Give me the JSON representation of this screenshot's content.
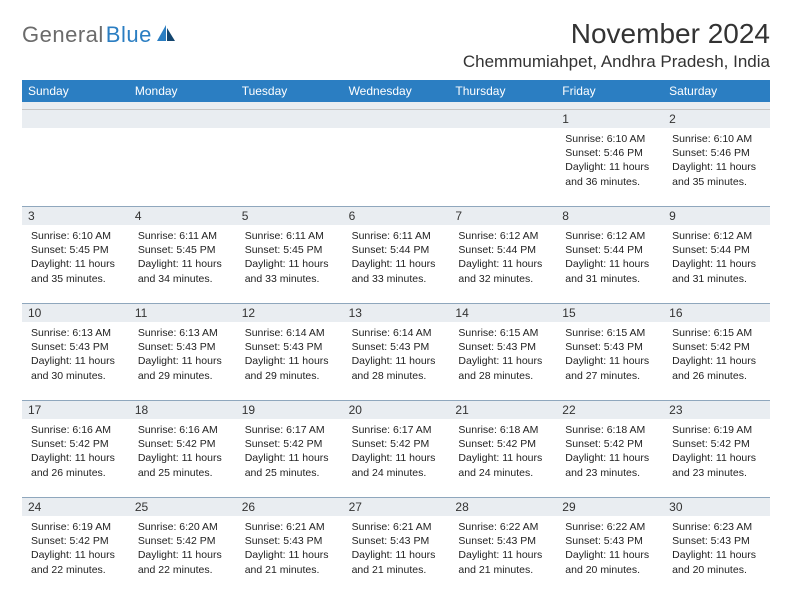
{
  "logo": {
    "text1": "General",
    "text2": "Blue"
  },
  "title": "November 2024",
  "location": "Chemmumiahpet, Andhra Pradesh, India",
  "colors": {
    "header_bg": "#2b7ec2",
    "datenum_bg": "#e9edf1",
    "date_border": "#8fa7bd",
    "spacer_border": "#c6c6c6",
    "text": "#222222",
    "logo_gray": "#6b6b6b",
    "logo_blue": "#2b7ec2"
  },
  "day_headers": [
    "Sunday",
    "Monday",
    "Tuesday",
    "Wednesday",
    "Thursday",
    "Friday",
    "Saturday"
  ],
  "weeks": [
    [
      {
        "n": "",
        "lines": []
      },
      {
        "n": "",
        "lines": []
      },
      {
        "n": "",
        "lines": []
      },
      {
        "n": "",
        "lines": []
      },
      {
        "n": "",
        "lines": []
      },
      {
        "n": "1",
        "lines": [
          "Sunrise: 6:10 AM",
          "Sunset: 5:46 PM",
          "Daylight: 11 hours",
          "and 36 minutes."
        ]
      },
      {
        "n": "2",
        "lines": [
          "Sunrise: 6:10 AM",
          "Sunset: 5:46 PM",
          "Daylight: 11 hours",
          "and 35 minutes."
        ]
      }
    ],
    [
      {
        "n": "3",
        "lines": [
          "Sunrise: 6:10 AM",
          "Sunset: 5:45 PM",
          "Daylight: 11 hours",
          "and 35 minutes."
        ]
      },
      {
        "n": "4",
        "lines": [
          "Sunrise: 6:11 AM",
          "Sunset: 5:45 PM",
          "Daylight: 11 hours",
          "and 34 minutes."
        ]
      },
      {
        "n": "5",
        "lines": [
          "Sunrise: 6:11 AM",
          "Sunset: 5:45 PM",
          "Daylight: 11 hours",
          "and 33 minutes."
        ]
      },
      {
        "n": "6",
        "lines": [
          "Sunrise: 6:11 AM",
          "Sunset: 5:44 PM",
          "Daylight: 11 hours",
          "and 33 minutes."
        ]
      },
      {
        "n": "7",
        "lines": [
          "Sunrise: 6:12 AM",
          "Sunset: 5:44 PM",
          "Daylight: 11 hours",
          "and 32 minutes."
        ]
      },
      {
        "n": "8",
        "lines": [
          "Sunrise: 6:12 AM",
          "Sunset: 5:44 PM",
          "Daylight: 11 hours",
          "and 31 minutes."
        ]
      },
      {
        "n": "9",
        "lines": [
          "Sunrise: 6:12 AM",
          "Sunset: 5:44 PM",
          "Daylight: 11 hours",
          "and 31 minutes."
        ]
      }
    ],
    [
      {
        "n": "10",
        "lines": [
          "Sunrise: 6:13 AM",
          "Sunset: 5:43 PM",
          "Daylight: 11 hours",
          "and 30 minutes."
        ]
      },
      {
        "n": "11",
        "lines": [
          "Sunrise: 6:13 AM",
          "Sunset: 5:43 PM",
          "Daylight: 11 hours",
          "and 29 minutes."
        ]
      },
      {
        "n": "12",
        "lines": [
          "Sunrise: 6:14 AM",
          "Sunset: 5:43 PM",
          "Daylight: 11 hours",
          "and 29 minutes."
        ]
      },
      {
        "n": "13",
        "lines": [
          "Sunrise: 6:14 AM",
          "Sunset: 5:43 PM",
          "Daylight: 11 hours",
          "and 28 minutes."
        ]
      },
      {
        "n": "14",
        "lines": [
          "Sunrise: 6:15 AM",
          "Sunset: 5:43 PM",
          "Daylight: 11 hours",
          "and 28 minutes."
        ]
      },
      {
        "n": "15",
        "lines": [
          "Sunrise: 6:15 AM",
          "Sunset: 5:43 PM",
          "Daylight: 11 hours",
          "and 27 minutes."
        ]
      },
      {
        "n": "16",
        "lines": [
          "Sunrise: 6:15 AM",
          "Sunset: 5:42 PM",
          "Daylight: 11 hours",
          "and 26 minutes."
        ]
      }
    ],
    [
      {
        "n": "17",
        "lines": [
          "Sunrise: 6:16 AM",
          "Sunset: 5:42 PM",
          "Daylight: 11 hours",
          "and 26 minutes."
        ]
      },
      {
        "n": "18",
        "lines": [
          "Sunrise: 6:16 AM",
          "Sunset: 5:42 PM",
          "Daylight: 11 hours",
          "and 25 minutes."
        ]
      },
      {
        "n": "19",
        "lines": [
          "Sunrise: 6:17 AM",
          "Sunset: 5:42 PM",
          "Daylight: 11 hours",
          "and 25 minutes."
        ]
      },
      {
        "n": "20",
        "lines": [
          "Sunrise: 6:17 AM",
          "Sunset: 5:42 PM",
          "Daylight: 11 hours",
          "and 24 minutes."
        ]
      },
      {
        "n": "21",
        "lines": [
          "Sunrise: 6:18 AM",
          "Sunset: 5:42 PM",
          "Daylight: 11 hours",
          "and 24 minutes."
        ]
      },
      {
        "n": "22",
        "lines": [
          "Sunrise: 6:18 AM",
          "Sunset: 5:42 PM",
          "Daylight: 11 hours",
          "and 23 minutes."
        ]
      },
      {
        "n": "23",
        "lines": [
          "Sunrise: 6:19 AM",
          "Sunset: 5:42 PM",
          "Daylight: 11 hours",
          "and 23 minutes."
        ]
      }
    ],
    [
      {
        "n": "24",
        "lines": [
          "Sunrise: 6:19 AM",
          "Sunset: 5:42 PM",
          "Daylight: 11 hours",
          "and 22 minutes."
        ]
      },
      {
        "n": "25",
        "lines": [
          "Sunrise: 6:20 AM",
          "Sunset: 5:42 PM",
          "Daylight: 11 hours",
          "and 22 minutes."
        ]
      },
      {
        "n": "26",
        "lines": [
          "Sunrise: 6:21 AM",
          "Sunset: 5:43 PM",
          "Daylight: 11 hours",
          "and 21 minutes."
        ]
      },
      {
        "n": "27",
        "lines": [
          "Sunrise: 6:21 AM",
          "Sunset: 5:43 PM",
          "Daylight: 11 hours",
          "and 21 minutes."
        ]
      },
      {
        "n": "28",
        "lines": [
          "Sunrise: 6:22 AM",
          "Sunset: 5:43 PM",
          "Daylight: 11 hours",
          "and 21 minutes."
        ]
      },
      {
        "n": "29",
        "lines": [
          "Sunrise: 6:22 AM",
          "Sunset: 5:43 PM",
          "Daylight: 11 hours",
          "and 20 minutes."
        ]
      },
      {
        "n": "30",
        "lines": [
          "Sunrise: 6:23 AM",
          "Sunset: 5:43 PM",
          "Daylight: 11 hours",
          "and 20 minutes."
        ]
      }
    ]
  ]
}
